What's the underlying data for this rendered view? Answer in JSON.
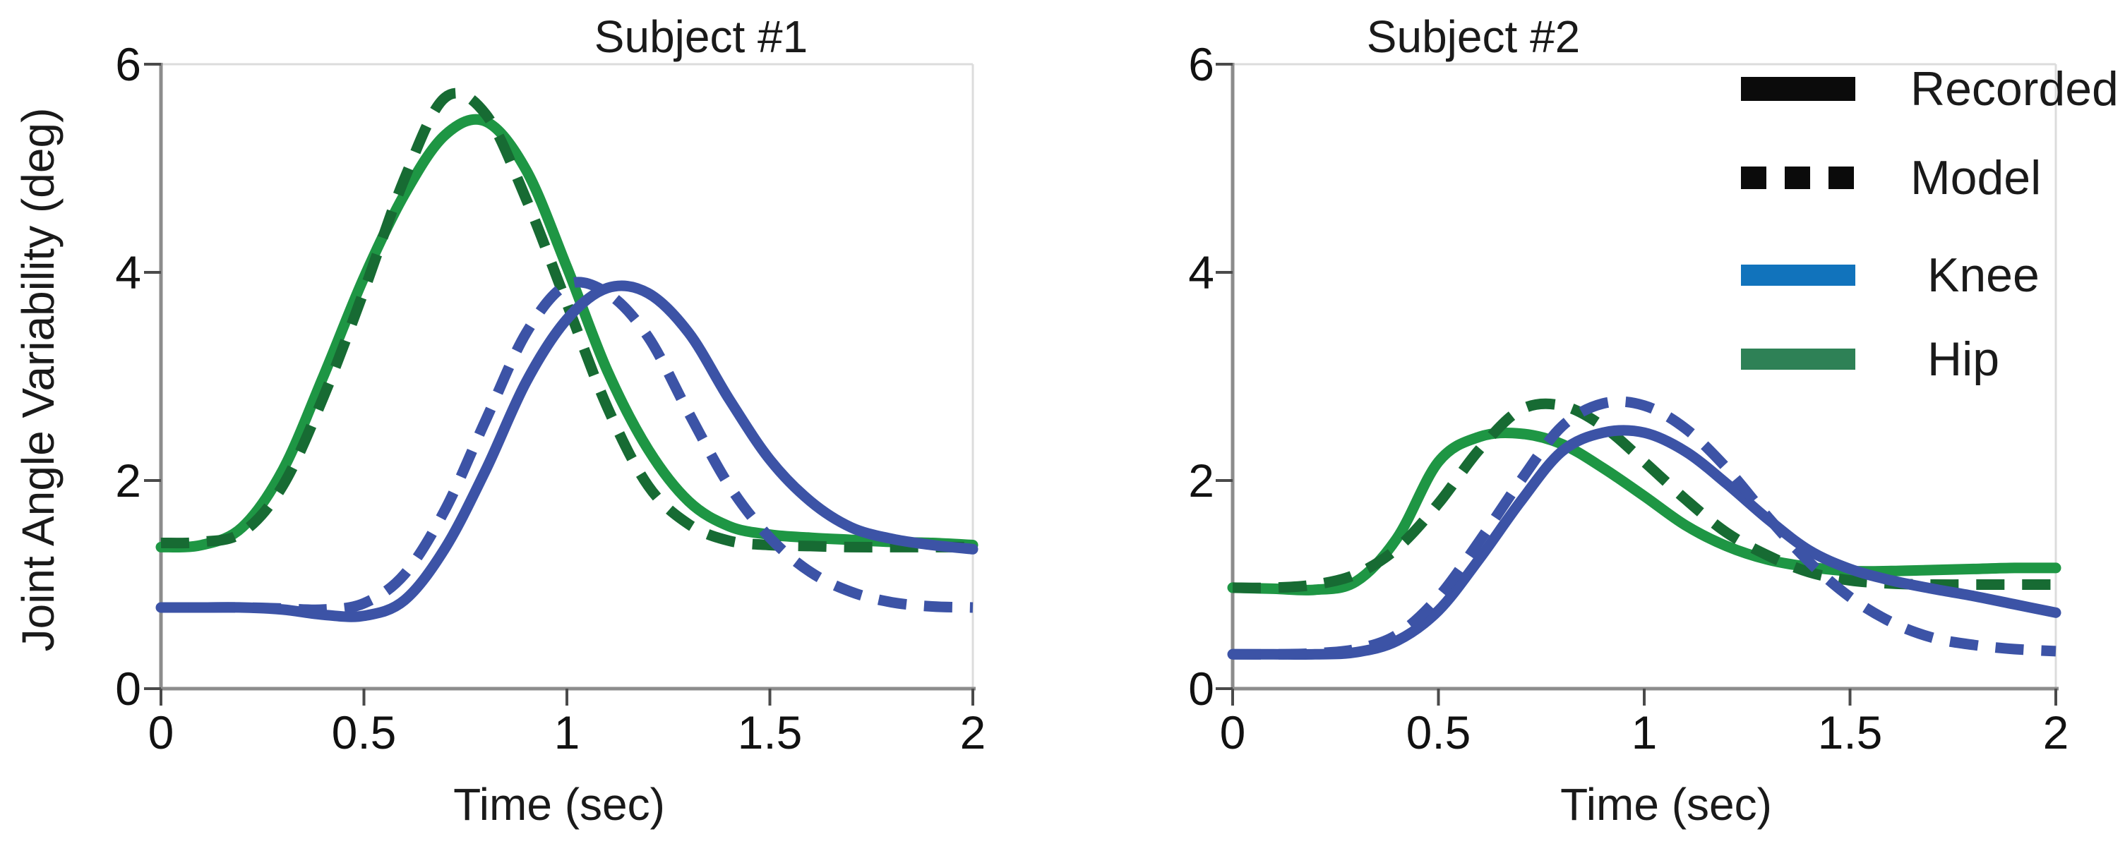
{
  "figure": {
    "y_axis_label": "Joint Angle Variability (deg)",
    "background": "#ffffff",
    "spine_color": "#8c8c8c",
    "frame_color": "#dcdcdc",
    "text_color": "#1a1a1a"
  },
  "legend": {
    "items": [
      {
        "label": "Recorded",
        "swatch": "black-solid-line",
        "color": "#0b0b0b"
      },
      {
        "label": "Model",
        "swatch": "black-dashed-line",
        "color": "#0b0b0b"
      },
      {
        "label": "Knee",
        "swatch": "blue-solid-line",
        "color": "#1173bc"
      },
      {
        "label": "Hip",
        "swatch": "green-solid-line",
        "color": "#2e8156"
      }
    ]
  },
  "chart_data": [
    {
      "type": "line",
      "title": "Subject #1",
      "xlabel": "Time (sec)",
      "ylabel": "Joint Angle Variability (deg)",
      "xlim": [
        0,
        2
      ],
      "ylim": [
        0,
        6
      ],
      "xticks": [
        "0",
        "0.5",
        "1",
        "1.5",
        "2"
      ],
      "yticks": [
        "0",
        "2",
        "4",
        "6"
      ],
      "grid": false,
      "x": [
        0,
        0.1,
        0.2,
        0.3,
        0.4,
        0.5,
        0.6,
        0.7,
        0.8,
        0.9,
        1.0,
        1.1,
        1.2,
        1.3,
        1.4,
        1.5,
        1.6,
        1.7,
        1.8,
        1.9,
        2.0
      ],
      "series": [
        {
          "name": "Hip Recorded",
          "joint": "Hip",
          "kind": "Recorded",
          "color": "#1e9644",
          "dash": false,
          "values": [
            1.36,
            1.38,
            1.55,
            2.1,
            3.0,
            3.95,
            4.75,
            5.32,
            5.45,
            4.98,
            4.05,
            3.05,
            2.3,
            1.8,
            1.56,
            1.48,
            1.45,
            1.43,
            1.41,
            1.4,
            1.38
          ]
        },
        {
          "name": "Hip Model",
          "joint": "Hip",
          "kind": "Model",
          "color": "#176b33",
          "dash": true,
          "values": [
            1.4,
            1.41,
            1.5,
            1.95,
            2.8,
            3.82,
            4.9,
            5.68,
            5.52,
            4.7,
            3.7,
            2.7,
            1.95,
            1.58,
            1.42,
            1.38,
            1.37,
            1.36,
            1.36,
            1.36,
            1.36
          ]
        },
        {
          "name": "Knee Recorded",
          "joint": "Knee",
          "kind": "Recorded",
          "color": "#3c53a6",
          "dash": false,
          "values": [
            0.78,
            0.78,
            0.78,
            0.76,
            0.71,
            0.7,
            0.85,
            1.35,
            2.1,
            2.95,
            3.55,
            3.85,
            3.8,
            3.42,
            2.78,
            2.2,
            1.8,
            1.55,
            1.44,
            1.38,
            1.34
          ]
        },
        {
          "name": "Knee Model",
          "joint": "Knee",
          "kind": "Model",
          "color": "#3c53a6",
          "dash": true,
          "values": [
            0.78,
            0.78,
            0.78,
            0.77,
            0.76,
            0.82,
            1.1,
            1.72,
            2.58,
            3.42,
            3.88,
            3.8,
            3.38,
            2.65,
            1.95,
            1.45,
            1.12,
            0.93,
            0.83,
            0.79,
            0.78
          ]
        }
      ]
    },
    {
      "type": "line",
      "title": "Subject #2",
      "xlabel": "Time (sec)",
      "ylabel": "Joint Angle Variability (deg)",
      "xlim": [
        0,
        2
      ],
      "ylim": [
        0,
        6
      ],
      "xticks": [
        "0",
        "0.5",
        "1",
        "1.5",
        "2"
      ],
      "yticks": [
        "0",
        "2",
        "4",
        "6"
      ],
      "grid": false,
      "x": [
        0,
        0.1,
        0.2,
        0.3,
        0.4,
        0.5,
        0.6,
        0.7,
        0.8,
        0.9,
        1.0,
        1.1,
        1.2,
        1.3,
        1.4,
        1.5,
        1.6,
        1.7,
        1.8,
        1.9,
        2.0
      ],
      "series": [
        {
          "name": "Hip Recorded",
          "joint": "Hip",
          "kind": "Recorded",
          "color": "#1e9644",
          "dash": false,
          "values": [
            0.97,
            0.96,
            0.95,
            1.03,
            1.45,
            2.18,
            2.42,
            2.45,
            2.35,
            2.12,
            1.85,
            1.57,
            1.37,
            1.24,
            1.17,
            1.13,
            1.13,
            1.14,
            1.15,
            1.16,
            1.16
          ]
        },
        {
          "name": "Hip Model",
          "joint": "Hip",
          "kind": "Model",
          "color": "#176b33",
          "dash": true,
          "values": [
            0.97,
            0.97,
            1.0,
            1.1,
            1.35,
            1.78,
            2.3,
            2.68,
            2.72,
            2.52,
            2.18,
            1.82,
            1.5,
            1.28,
            1.12,
            1.04,
            1.01,
            1.0,
            1.0,
            1.0,
            1.0
          ]
        },
        {
          "name": "Knee Recorded",
          "joint": "Knee",
          "kind": "Recorded",
          "color": "#3c53a6",
          "dash": false,
          "values": [
            0.33,
            0.33,
            0.33,
            0.35,
            0.46,
            0.75,
            1.25,
            1.8,
            2.28,
            2.46,
            2.46,
            2.28,
            1.97,
            1.63,
            1.33,
            1.15,
            1.04,
            0.96,
            0.89,
            0.81,
            0.73
          ]
        },
        {
          "name": "Knee Model",
          "joint": "Knee",
          "kind": "Model",
          "color": "#3c53a6",
          "dash": true,
          "values": [
            0.33,
            0.33,
            0.34,
            0.38,
            0.52,
            0.88,
            1.42,
            2.0,
            2.52,
            2.74,
            2.72,
            2.5,
            2.12,
            1.65,
            1.22,
            0.88,
            0.64,
            0.49,
            0.42,
            0.38,
            0.36
          ]
        }
      ]
    }
  ]
}
